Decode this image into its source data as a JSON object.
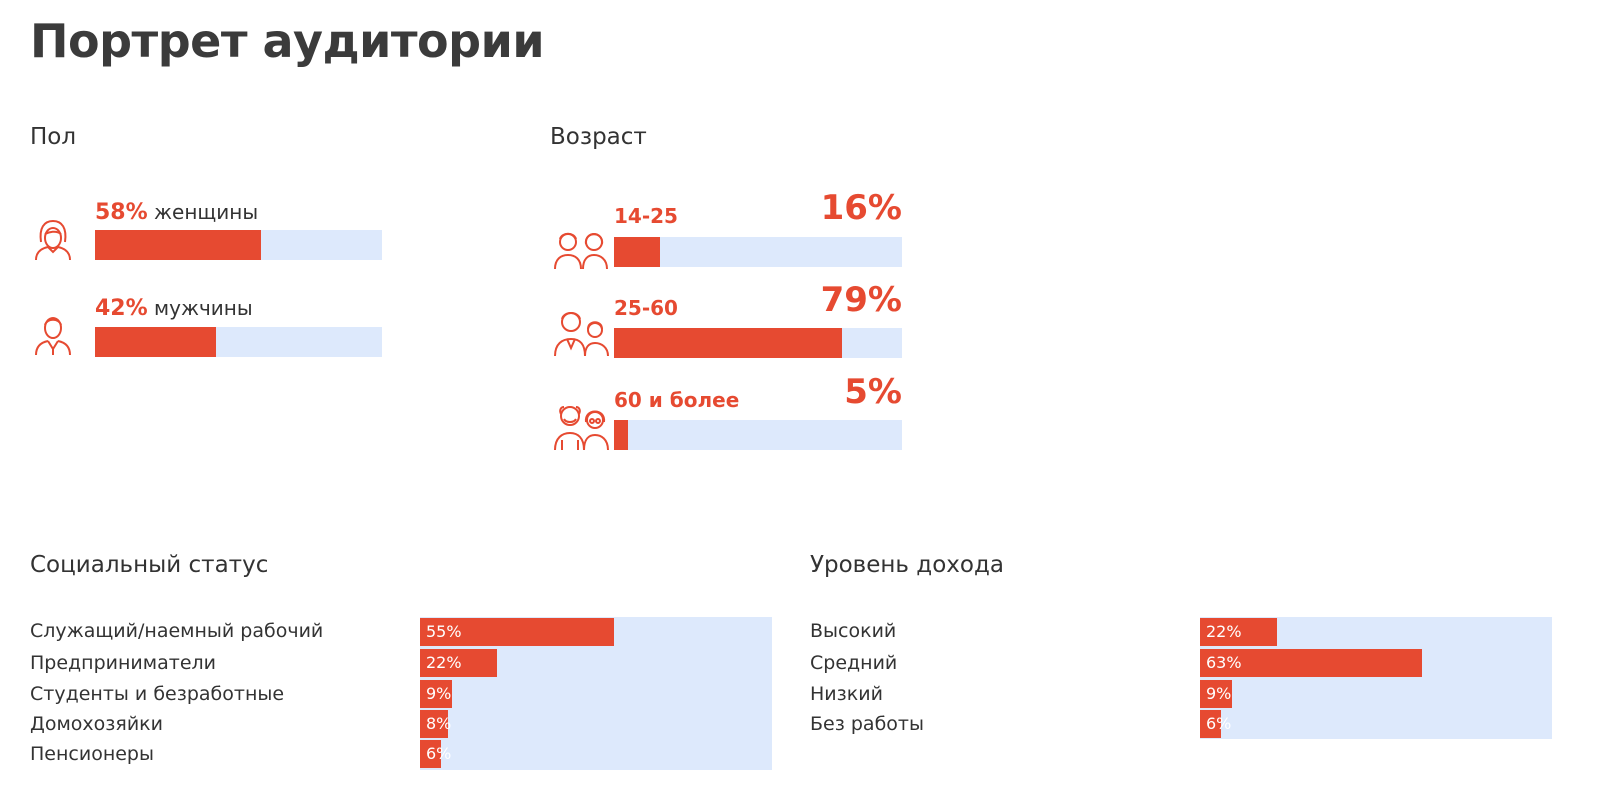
{
  "title": "Портрет аудитории",
  "colors": {
    "accent": "#e64a31",
    "track": "#dde9fc",
    "text": "#333333"
  },
  "gender": {
    "title": "Пол",
    "items": [
      {
        "pct": "58%",
        "label": "женщины",
        "value": 58,
        "icon": "woman-icon"
      },
      {
        "pct": "42%",
        "label": "мужчины",
        "value": 42,
        "icon": "man-icon"
      }
    ]
  },
  "age": {
    "title": "Возраст",
    "items": [
      {
        "label": "14-25",
        "pct": "16%",
        "value": 16,
        "icon": "youth-icon"
      },
      {
        "label": "25-60",
        "pct": "79%",
        "value": 79,
        "icon": "adults-icon"
      },
      {
        "label": "60 и более",
        "pct": "5%",
        "value": 5,
        "icon": "seniors-icon"
      }
    ]
  },
  "social": {
    "title": "Социальный статус",
    "rows": [
      {
        "label": "Служащий/наемный рабочий",
        "pct": "55%",
        "value": 55
      },
      {
        "label": "Предприниматели",
        "pct": "22%",
        "value": 22
      },
      {
        "label": "Студенты и безработные",
        "pct": "9%",
        "value": 9
      },
      {
        "label": "Домохозяйки",
        "pct": "8%",
        "value": 8
      },
      {
        "label": "Пенсионеры",
        "pct": "6%",
        "value": 6
      }
    ]
  },
  "income": {
    "title": "Уровень дохода",
    "rows": [
      {
        "label": "Высокий",
        "pct": "22%",
        "value": 22
      },
      {
        "label": "Средний",
        "pct": "63%",
        "value": 63
      },
      {
        "label": "Низкий",
        "pct": "9%",
        "value": 9
      },
      {
        "label": "Без работы",
        "pct": "6%",
        "value": 6
      }
    ]
  },
  "chart_data": [
    {
      "type": "bar",
      "title": "Пол",
      "categories": [
        "женщины",
        "мужчины"
      ],
      "values": [
        58,
        42
      ],
      "ylim": [
        0,
        100
      ]
    },
    {
      "type": "bar",
      "title": "Возраст",
      "categories": [
        "14-25",
        "25-60",
        "60 и более"
      ],
      "values": [
        16,
        79,
        5
      ],
      "ylim": [
        0,
        100
      ]
    },
    {
      "type": "bar",
      "title": "Социальный статус",
      "categories": [
        "Служащий/наемный рабочий",
        "Предприниматели",
        "Студенты и безработные",
        "Домохозяйки",
        "Пенсионеры"
      ],
      "values": [
        55,
        22,
        9,
        8,
        6
      ],
      "ylim": [
        0,
        100
      ]
    },
    {
      "type": "bar",
      "title": "Уровень дохода",
      "categories": [
        "Высокий",
        "Средний",
        "Низкий",
        "Без работы"
      ],
      "values": [
        22,
        63,
        9,
        6
      ],
      "ylim": [
        0,
        100
      ]
    }
  ]
}
